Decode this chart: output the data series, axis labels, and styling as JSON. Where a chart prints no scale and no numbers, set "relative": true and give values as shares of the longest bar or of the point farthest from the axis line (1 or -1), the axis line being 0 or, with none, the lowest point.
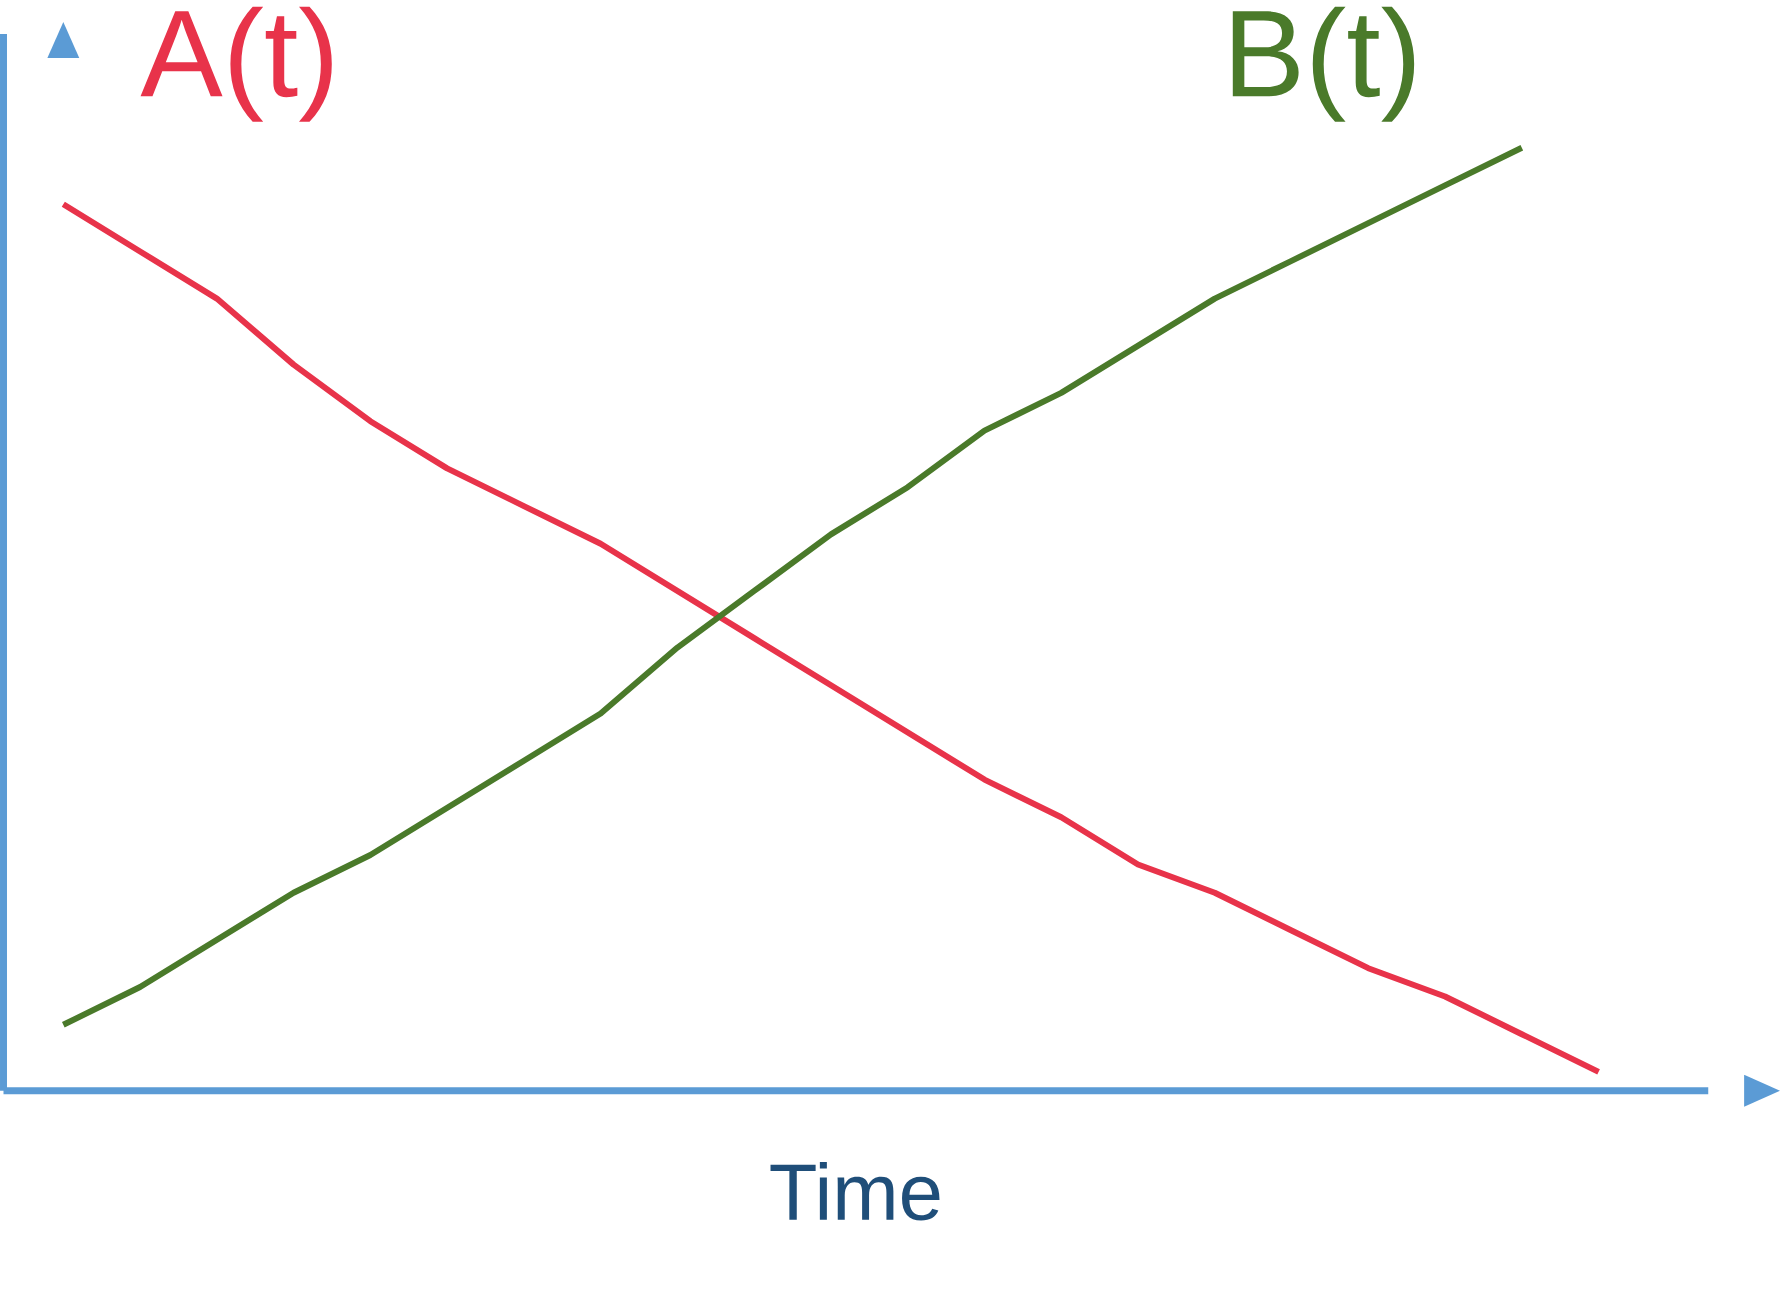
{
  "chart_data": {
    "type": "line",
    "relative": true,
    "xlabel": "Time",
    "categories": [
      null,
      null,
      null,
      null,
      null,
      null,
      null,
      null,
      null,
      null,
      null,
      null,
      null,
      null,
      null,
      null,
      null,
      null,
      null,
      null,
      null
    ],
    "series": [
      {
        "name": "A(t)",
        "color": "#e8334a",
        "values": [
          0.94,
          0.89,
          0.84,
          0.77,
          0.71,
          0.66,
          0.62,
          0.58,
          0.53,
          0.48,
          0.43,
          0.38,
          0.33,
          0.29,
          0.24,
          0.21,
          0.17,
          0.13,
          0.1,
          0.06,
          0.02
        ]
      },
      {
        "name": "B(t)",
        "color": "#4a7a2a",
        "values": [
          0.07,
          0.11,
          0.16,
          0.21,
          0.25,
          0.3,
          0.35,
          0.4,
          0.47,
          0.53,
          0.59,
          0.64,
          0.7,
          0.74,
          0.79,
          0.84,
          0.88,
          0.92,
          0.96,
          1.0,
          null
        ]
      }
    ]
  }
}
